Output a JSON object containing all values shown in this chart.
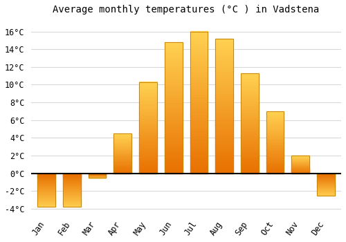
{
  "title": "Average monthly temperatures (°C ) in Vadstena",
  "months": [
    "Jan",
    "Feb",
    "Mar",
    "Apr",
    "May",
    "Jun",
    "Jul",
    "Aug",
    "Sep",
    "Oct",
    "Nov",
    "Dec"
  ],
  "values": [
    -3.8,
    -3.8,
    -0.5,
    4.5,
    10.3,
    14.8,
    16.0,
    15.2,
    11.3,
    7.0,
    2.0,
    -2.5
  ],
  "bar_color_main": "#FFA500",
  "bar_color_edge": "#c8860a",
  "bar_color_gradient_top": "#FFD050",
  "bar_color_gradient_bottom": "#E87000",
  "ylim": [
    -4.5,
    17.5
  ],
  "yticks": [
    -4,
    -2,
    0,
    2,
    4,
    6,
    8,
    10,
    12,
    14,
    16
  ],
  "background_color": "#ffffff",
  "plot_background": "#ffffff",
  "grid_color": "#d8d8d8",
  "title_fontsize": 10,
  "tick_fontsize": 8.5,
  "bar_width": 0.7
}
